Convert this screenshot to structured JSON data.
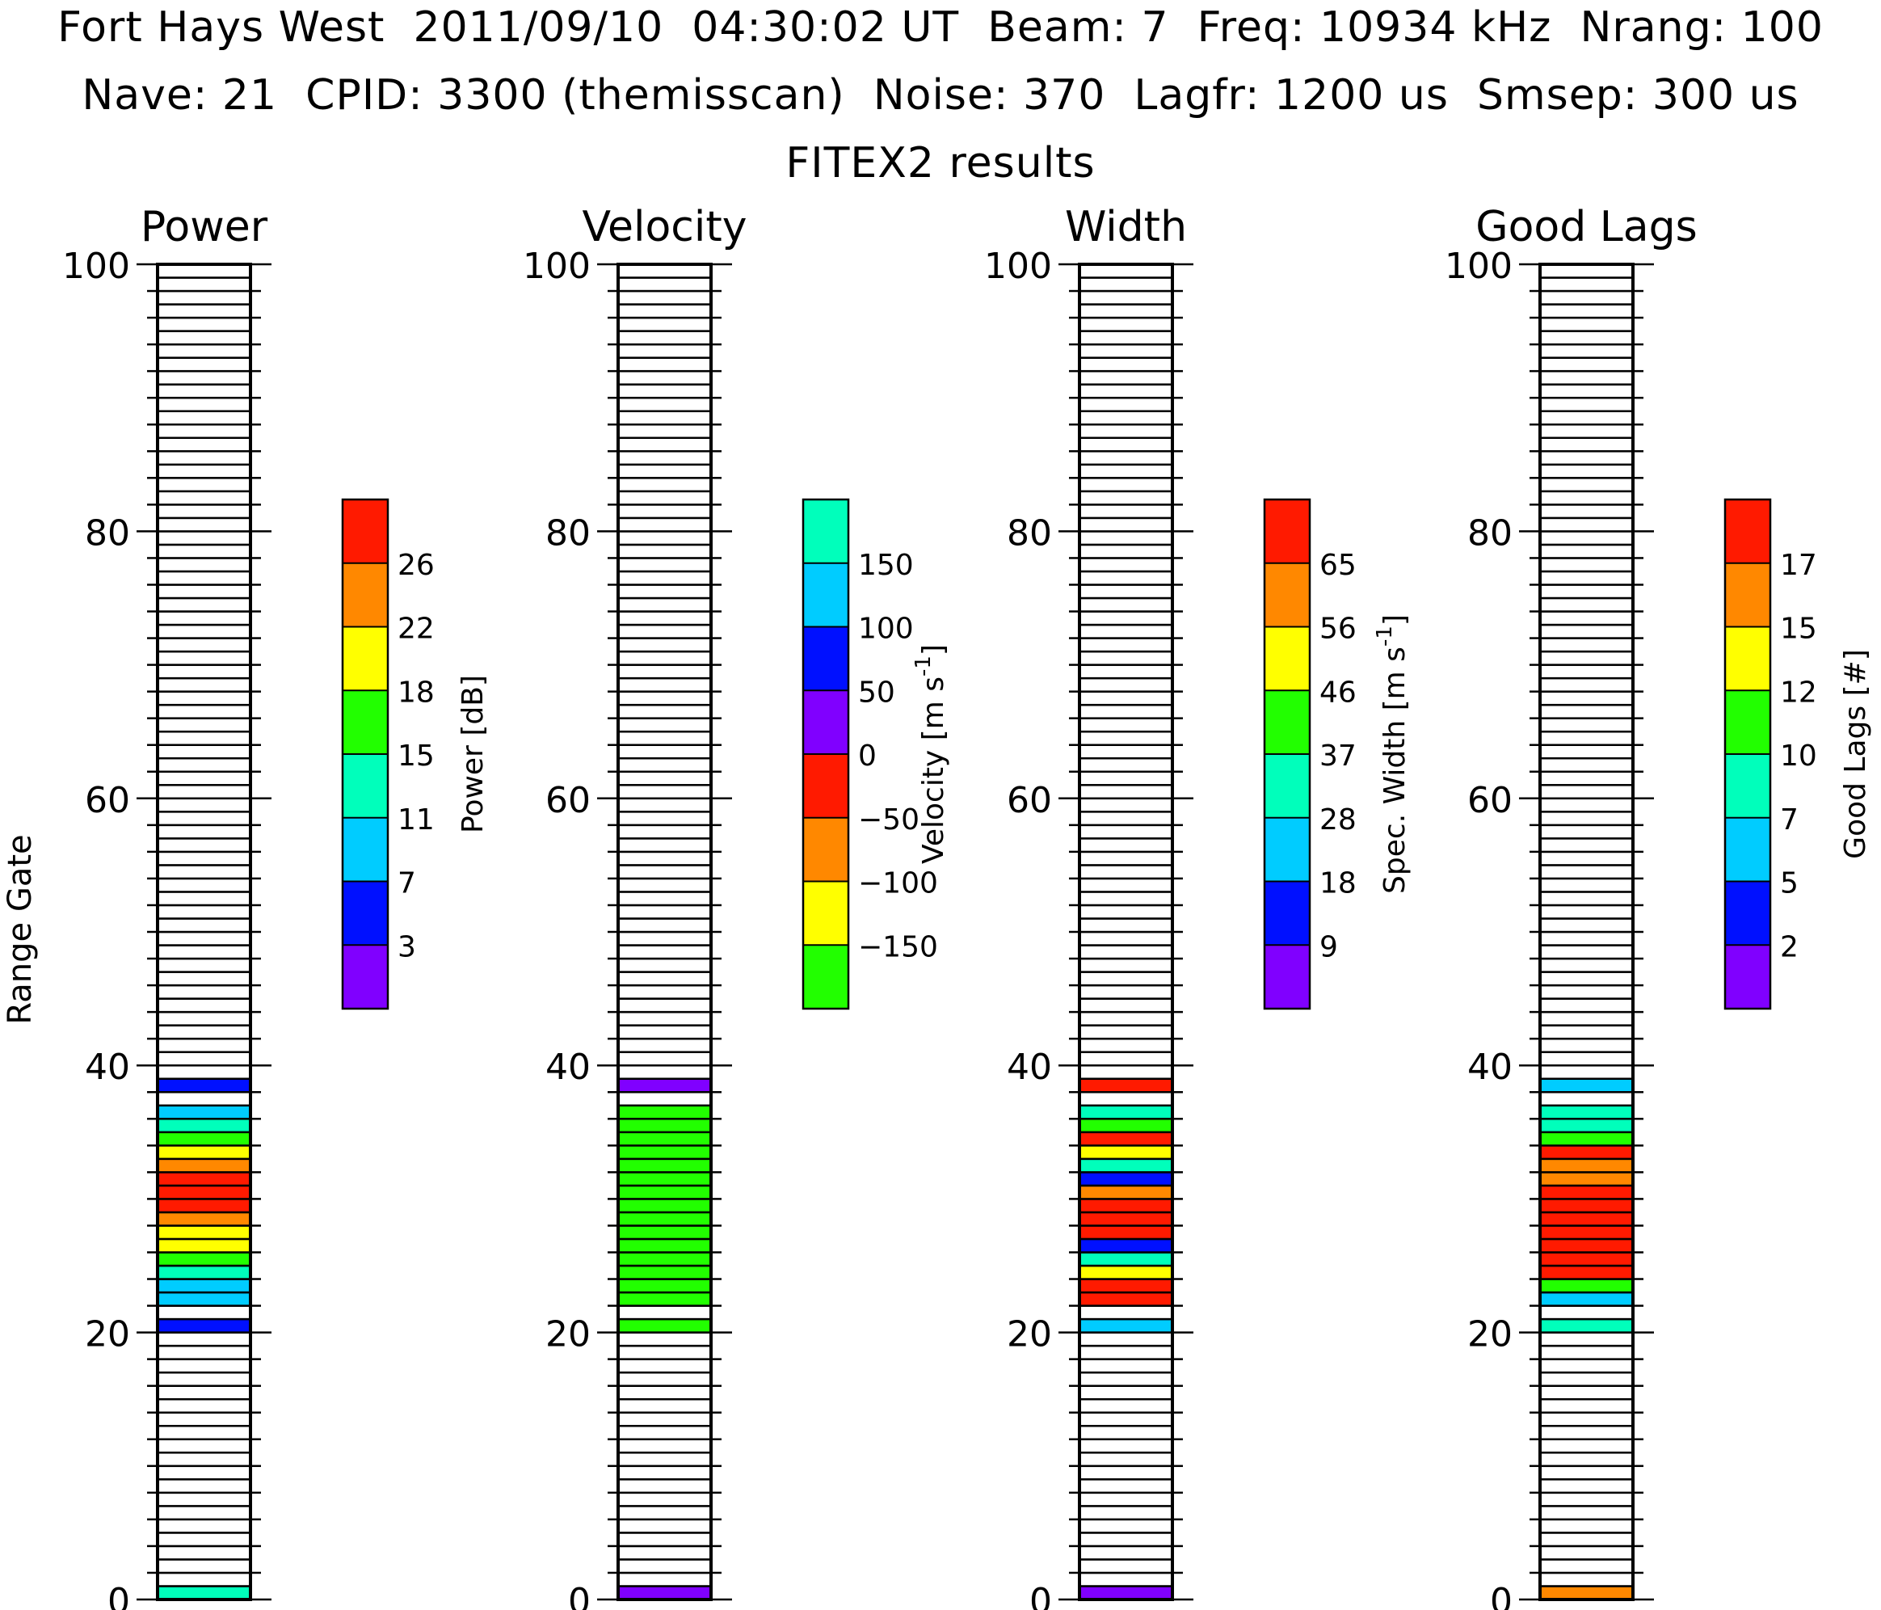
{
  "header": {
    "line1": "Fort Hays West  2011/09/10  04:30:02 UT  Beam: 7  Freq: 10934 kHz  Nrang: 100",
    "line2": "Nave: 21  CPID: 3300 (themisscan)  Noise: 370  Lagfr: 1200 us  Smsep: 300 us",
    "line3": "FITEX2 results"
  },
  "colors": {
    "purple": "#8000ff",
    "blue": "#0010ff",
    "skyblue": "#00ccff",
    "aqua": "#00ffbb",
    "green": "#22ff00",
    "yellow": "#ffff00",
    "orange": "#ff8800",
    "red": "#ff1a00"
  },
  "chart_data": [
    {
      "type": "heatmap",
      "title": "Power",
      "ylabel": "Range Gate",
      "ylim": [
        0,
        100
      ],
      "yticks": [
        "0",
        "20",
        "40",
        "60",
        "80",
        "100"
      ],
      "colorbar": {
        "label": "Power [dB]",
        "colors": [
          "purple",
          "blue",
          "skyblue",
          "aqua",
          "green",
          "yellow",
          "orange",
          "red"
        ],
        "ticks": [
          "3",
          "7",
          "11",
          "15",
          "18",
          "22",
          "26"
        ]
      },
      "gates": [
        {
          "gate": 0,
          "color": "aqua"
        },
        {
          "gate": 20,
          "color": "blue"
        },
        {
          "gate": 22,
          "color": "skyblue"
        },
        {
          "gate": 23,
          "color": "skyblue"
        },
        {
          "gate": 24,
          "color": "aqua"
        },
        {
          "gate": 25,
          "color": "green"
        },
        {
          "gate": 26,
          "color": "yellow"
        },
        {
          "gate": 27,
          "color": "yellow"
        },
        {
          "gate": 28,
          "color": "orange"
        },
        {
          "gate": 29,
          "color": "red"
        },
        {
          "gate": 30,
          "color": "red"
        },
        {
          "gate": 31,
          "color": "red"
        },
        {
          "gate": 32,
          "color": "orange"
        },
        {
          "gate": 33,
          "color": "yellow"
        },
        {
          "gate": 34,
          "color": "green"
        },
        {
          "gate": 35,
          "color": "aqua"
        },
        {
          "gate": 36,
          "color": "skyblue"
        },
        {
          "gate": 38,
          "color": "blue"
        }
      ]
    },
    {
      "type": "heatmap",
      "title": "Velocity",
      "ylim": [
        0,
        100
      ],
      "yticks": [
        "0",
        "20",
        "40",
        "60",
        "80",
        "100"
      ],
      "colorbar": {
        "label": "Velocity [m s^-1]",
        "colors": [
          "green",
          "yellow",
          "orange",
          "red",
          "purple",
          "blue",
          "skyblue",
          "aqua"
        ],
        "ticks": [
          "−150",
          "−100",
          "−50",
          "0",
          "50",
          "100",
          "150"
        ]
      },
      "gates": [
        {
          "gate": 0,
          "color": "purple"
        },
        {
          "gate": 20,
          "color": "green"
        },
        {
          "gate": 22,
          "color": "green"
        },
        {
          "gate": 23,
          "color": "green"
        },
        {
          "gate": 24,
          "color": "green"
        },
        {
          "gate": 25,
          "color": "green"
        },
        {
          "gate": 26,
          "color": "green"
        },
        {
          "gate": 27,
          "color": "green"
        },
        {
          "gate": 28,
          "color": "green"
        },
        {
          "gate": 29,
          "color": "green"
        },
        {
          "gate": 30,
          "color": "green"
        },
        {
          "gate": 31,
          "color": "green"
        },
        {
          "gate": 32,
          "color": "green"
        },
        {
          "gate": 33,
          "color": "green"
        },
        {
          "gate": 34,
          "color": "green"
        },
        {
          "gate": 35,
          "color": "green"
        },
        {
          "gate": 36,
          "color": "green"
        },
        {
          "gate": 38,
          "color": "purple"
        }
      ]
    },
    {
      "type": "heatmap",
      "title": "Width",
      "ylim": [
        0,
        100
      ],
      "yticks": [
        "0",
        "20",
        "40",
        "60",
        "80",
        "100"
      ],
      "colorbar": {
        "label": "Spec. Width [m s^-1]",
        "colors": [
          "purple",
          "blue",
          "skyblue",
          "aqua",
          "green",
          "yellow",
          "orange",
          "red"
        ],
        "ticks": [
          "9",
          "18",
          "28",
          "37",
          "46",
          "56",
          "65"
        ]
      },
      "gates": [
        {
          "gate": 0,
          "color": "purple"
        },
        {
          "gate": 20,
          "color": "skyblue"
        },
        {
          "gate": 22,
          "color": "red"
        },
        {
          "gate": 23,
          "color": "red"
        },
        {
          "gate": 24,
          "color": "yellow"
        },
        {
          "gate": 25,
          "color": "aqua"
        },
        {
          "gate": 26,
          "color": "blue"
        },
        {
          "gate": 27,
          "color": "red"
        },
        {
          "gate": 28,
          "color": "red"
        },
        {
          "gate": 29,
          "color": "red"
        },
        {
          "gate": 30,
          "color": "orange"
        },
        {
          "gate": 31,
          "color": "blue"
        },
        {
          "gate": 32,
          "color": "aqua"
        },
        {
          "gate": 33,
          "color": "yellow"
        },
        {
          "gate": 34,
          "color": "red"
        },
        {
          "gate": 35,
          "color": "green"
        },
        {
          "gate": 36,
          "color": "aqua"
        },
        {
          "gate": 38,
          "color": "red"
        }
      ]
    },
    {
      "type": "heatmap",
      "title": "Good Lags",
      "ylim": [
        0,
        100
      ],
      "yticks": [
        "0",
        "20",
        "40",
        "60",
        "80",
        "100"
      ],
      "colorbar": {
        "label": "Good Lags [#]",
        "colors": [
          "purple",
          "blue",
          "skyblue",
          "aqua",
          "green",
          "yellow",
          "orange",
          "red"
        ],
        "ticks": [
          "2",
          "5",
          "7",
          "10",
          "12",
          "15",
          "17"
        ]
      },
      "gates": [
        {
          "gate": 0,
          "color": "orange"
        },
        {
          "gate": 20,
          "color": "aqua"
        },
        {
          "gate": 22,
          "color": "skyblue"
        },
        {
          "gate": 23,
          "color": "green"
        },
        {
          "gate": 24,
          "color": "red"
        },
        {
          "gate": 25,
          "color": "red"
        },
        {
          "gate": 26,
          "color": "red"
        },
        {
          "gate": 27,
          "color": "red"
        },
        {
          "gate": 28,
          "color": "red"
        },
        {
          "gate": 29,
          "color": "red"
        },
        {
          "gate": 30,
          "color": "red"
        },
        {
          "gate": 31,
          "color": "orange"
        },
        {
          "gate": 32,
          "color": "orange"
        },
        {
          "gate": 33,
          "color": "red"
        },
        {
          "gate": 34,
          "color": "green"
        },
        {
          "gate": 35,
          "color": "aqua"
        },
        {
          "gate": 36,
          "color": "aqua"
        },
        {
          "gate": 38,
          "color": "skyblue"
        }
      ]
    }
  ]
}
